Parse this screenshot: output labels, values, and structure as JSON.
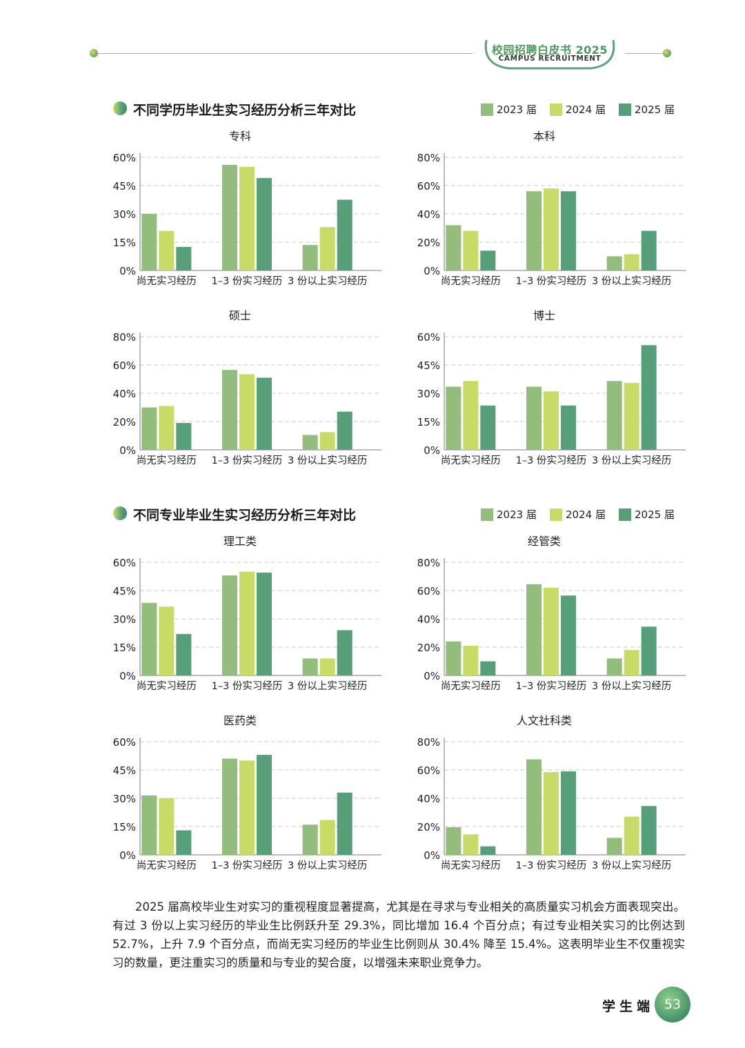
{
  "header": {
    "title": "校园招聘白皮书 2025",
    "subtitle": "CAMPUS RECRUITMENT"
  },
  "colors": {
    "2023": "#93bd7d",
    "2024": "#c9db67",
    "2025": "#579f78",
    "accent": "#4a9a5e"
  },
  "sections": [
    {
      "title": "不同学历毕业生实习经历分析三年对比"
    },
    {
      "title": "不同专业毕业生实习经历分析三年对比"
    }
  ],
  "legend": [
    "2023 届",
    "2024 届",
    "2025 届"
  ],
  "chart_data": [
    {
      "type": "bar",
      "title": "专科",
      "categories": [
        "尚无实习经历",
        "1–3 份实习经历",
        "3 份以上实习经历"
      ],
      "ylim": [
        0,
        60
      ],
      "yticks": [
        "0%",
        "15%",
        "30%",
        "45%",
        "60%"
      ],
      "tickvals": [
        0,
        15,
        30,
        45,
        60
      ],
      "series": [
        {
          "name": "2023 届",
          "values": [
            30,
            56,
            13.5
          ]
        },
        {
          "name": "2024 届",
          "values": [
            21,
            55,
            23
          ]
        },
        {
          "name": "2025 届",
          "values": [
            12.5,
            49,
            37.5
          ]
        }
      ]
    },
    {
      "type": "bar",
      "title": "本科",
      "categories": [
        "尚无实习经历",
        "1–3 份实习经历",
        "3 份以上实习经历"
      ],
      "ylim": [
        0,
        80
      ],
      "yticks": [
        "0%",
        "20%",
        "40%",
        "60%",
        "80%"
      ],
      "tickvals": [
        0,
        20,
        40,
        60,
        80
      ],
      "series": [
        {
          "name": "2023 届",
          "values": [
            32,
            56,
            10
          ]
        },
        {
          "name": "2024 届",
          "values": [
            28,
            58,
            11.5
          ]
        },
        {
          "name": "2025 届",
          "values": [
            14,
            56,
            28
          ]
        }
      ]
    },
    {
      "type": "bar",
      "title": "硕士",
      "categories": [
        "尚无实习经历",
        "1–3 份实习经历",
        "3 份以上实习经历"
      ],
      "ylim": [
        0,
        80
      ],
      "yticks": [
        "0%",
        "20%",
        "40%",
        "60%",
        "80%"
      ],
      "tickvals": [
        0,
        20,
        40,
        60,
        80
      ],
      "series": [
        {
          "name": "2023 届",
          "values": [
            30,
            56.5,
            10.5
          ]
        },
        {
          "name": "2024 届",
          "values": [
            31,
            53.5,
            12.5
          ]
        },
        {
          "name": "2025 届",
          "values": [
            19,
            51,
            27
          ]
        }
      ]
    },
    {
      "type": "bar",
      "title": "博士",
      "categories": [
        "尚无实习经历",
        "1–3 份实习经历",
        "3 份以上实习经历"
      ],
      "ylim": [
        0,
        60
      ],
      "yticks": [
        "0%",
        "15%",
        "30%",
        "45%",
        "60%"
      ],
      "tickvals": [
        0,
        15,
        30,
        45,
        60
      ],
      "series": [
        {
          "name": "2023 届",
          "values": [
            33.5,
            33.5,
            36.5
          ]
        },
        {
          "name": "2024 届",
          "values": [
            36.5,
            31,
            35.5
          ]
        },
        {
          "name": "2025 届",
          "values": [
            23.5,
            23.5,
            55.5
          ]
        }
      ]
    },
    {
      "type": "bar",
      "title": "理工类",
      "categories": [
        "尚无实习经历",
        "1–3 份实习经历",
        "3 份以上实习经历"
      ],
      "ylim": [
        0,
        60
      ],
      "yticks": [
        "0%",
        "15%",
        "30%",
        "45%",
        "60%"
      ],
      "tickvals": [
        0,
        15,
        30,
        45,
        60
      ],
      "series": [
        {
          "name": "2023 届",
          "values": [
            38.5,
            53,
            9
          ]
        },
        {
          "name": "2024 届",
          "values": [
            36.5,
            55,
            9
          ]
        },
        {
          "name": "2025 届",
          "values": [
            22,
            54.5,
            24
          ]
        }
      ]
    },
    {
      "type": "bar",
      "title": "经管类",
      "categories": [
        "尚无实习经历",
        "1–3 份实习经历",
        "3 份以上实习经历"
      ],
      "ylim": [
        0,
        80
      ],
      "yticks": [
        "0%",
        "20%",
        "40%",
        "60%",
        "80%"
      ],
      "tickvals": [
        0,
        20,
        40,
        60,
        80
      ],
      "series": [
        {
          "name": "2023 届",
          "values": [
            24,
            64.5,
            12
          ]
        },
        {
          "name": "2024 届",
          "values": [
            21,
            62,
            18
          ]
        },
        {
          "name": "2025 届",
          "values": [
            10,
            56.5,
            34.5
          ]
        }
      ]
    },
    {
      "type": "bar",
      "title": "医药类",
      "categories": [
        "尚无实习经历",
        "1–3 份实习经历",
        "3 份以上实习经历"
      ],
      "ylim": [
        0,
        60
      ],
      "yticks": [
        "0%",
        "15%",
        "30%",
        "45%",
        "60%"
      ],
      "tickvals": [
        0,
        15,
        30,
        45,
        60
      ],
      "series": [
        {
          "name": "2023 届",
          "values": [
            31.5,
            51,
            16
          ]
        },
        {
          "name": "2024 届",
          "values": [
            30,
            50,
            18.5
          ]
        },
        {
          "name": "2025 届",
          "values": [
            13,
            53,
            33
          ]
        }
      ]
    },
    {
      "type": "bar",
      "title": "人文社科类",
      "categories": [
        "尚无实习经历",
        "1–3 份实习经历",
        "3 份以上实习经历"
      ],
      "ylim": [
        0,
        80
      ],
      "yticks": [
        "0%",
        "20%",
        "40%",
        "60%",
        "80%"
      ],
      "tickvals": [
        0,
        20,
        40,
        60,
        80
      ],
      "series": [
        {
          "name": "2023 届",
          "values": [
            19.5,
            67.5,
            12
          ]
        },
        {
          "name": "2024 届",
          "values": [
            14.5,
            58.5,
            27
          ]
        },
        {
          "name": "2025 届",
          "values": [
            6,
            59,
            34.5
          ]
        }
      ]
    }
  ],
  "paragraph": "2025 届高校毕业生对实习的重视程度显著提高，尤其是在寻求与专业相关的高质量实习机会方面表现突出。有过 3 份以上实习经历的毕业生比例跃升至 29.3%，同比增加 16.4 个百分点；有过专业相关实习的比例达到 52.7%，上升 7.9 个百分点，而尚无实习经历的毕业生比例则从 30.4% 降至 15.4%。这表明毕业生不仅重视实习的数量，更注重实习的质量和与专业的契合度，以增强未来职业竞争力。",
  "footer": {
    "label": "学生端",
    "page": "53"
  }
}
